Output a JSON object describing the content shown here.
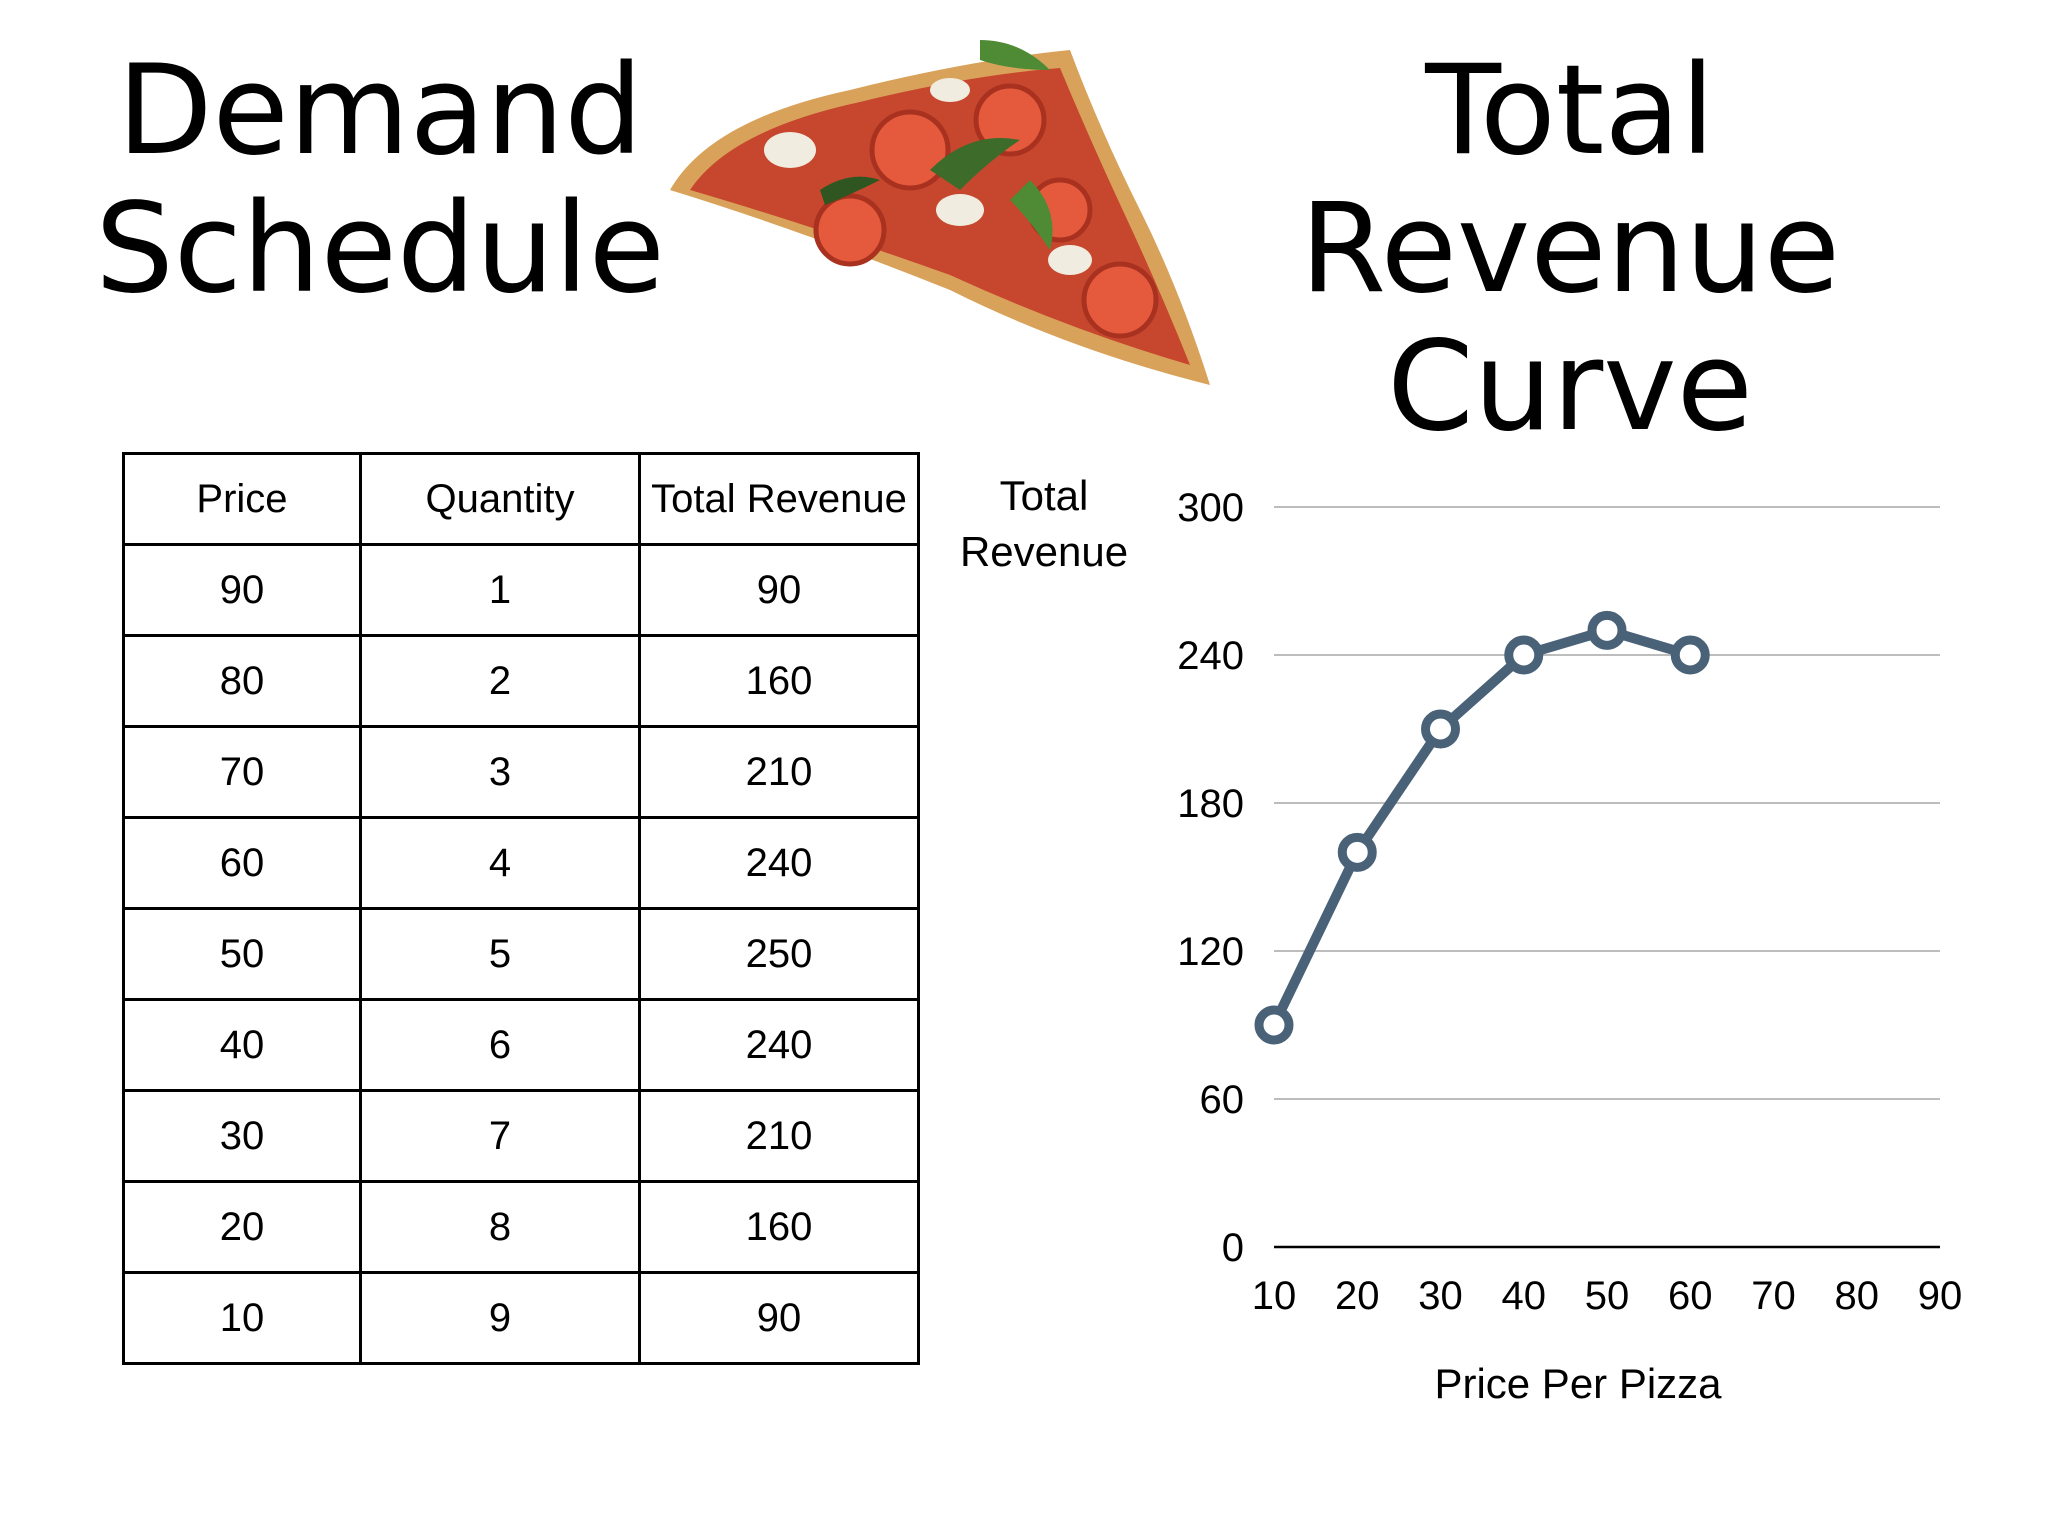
{
  "titles": {
    "left_line1": "Demand",
    "left_line2": "Schedule",
    "right_line1": "Total Revenue",
    "right_line2": "Curve"
  },
  "image": {
    "icon": "pizza-slice"
  },
  "table": {
    "headers": [
      "Price",
      "Quantity",
      "Total Revenue"
    ],
    "rows": [
      [
        "90",
        "1",
        "90"
      ],
      [
        "80",
        "2",
        "160"
      ],
      [
        "70",
        "3",
        "210"
      ],
      [
        "60",
        "4",
        "240"
      ],
      [
        "50",
        "5",
        "250"
      ],
      [
        "40",
        "6",
        "240"
      ],
      [
        "30",
        "7",
        "210"
      ],
      [
        "20",
        "8",
        "160"
      ],
      [
        "10",
        "9",
        "90"
      ]
    ]
  },
  "chart_data": {
    "type": "line",
    "ylabel_line1": "Total",
    "ylabel_line2": "Revenue",
    "xlabel": "Price Per Pizza",
    "x_ticks": [
      "10",
      "20",
      "30",
      "40",
      "50",
      "60",
      "70",
      "80",
      "90"
    ],
    "y_ticks": [
      "0",
      "60",
      "120",
      "180",
      "240",
      "300"
    ],
    "ylim": [
      0,
      300
    ],
    "x": [
      10,
      20,
      30,
      40,
      50,
      60
    ],
    "values": [
      90,
      160,
      210,
      240,
      250,
      240
    ],
    "grid": true,
    "line_color": "#4a6278"
  }
}
